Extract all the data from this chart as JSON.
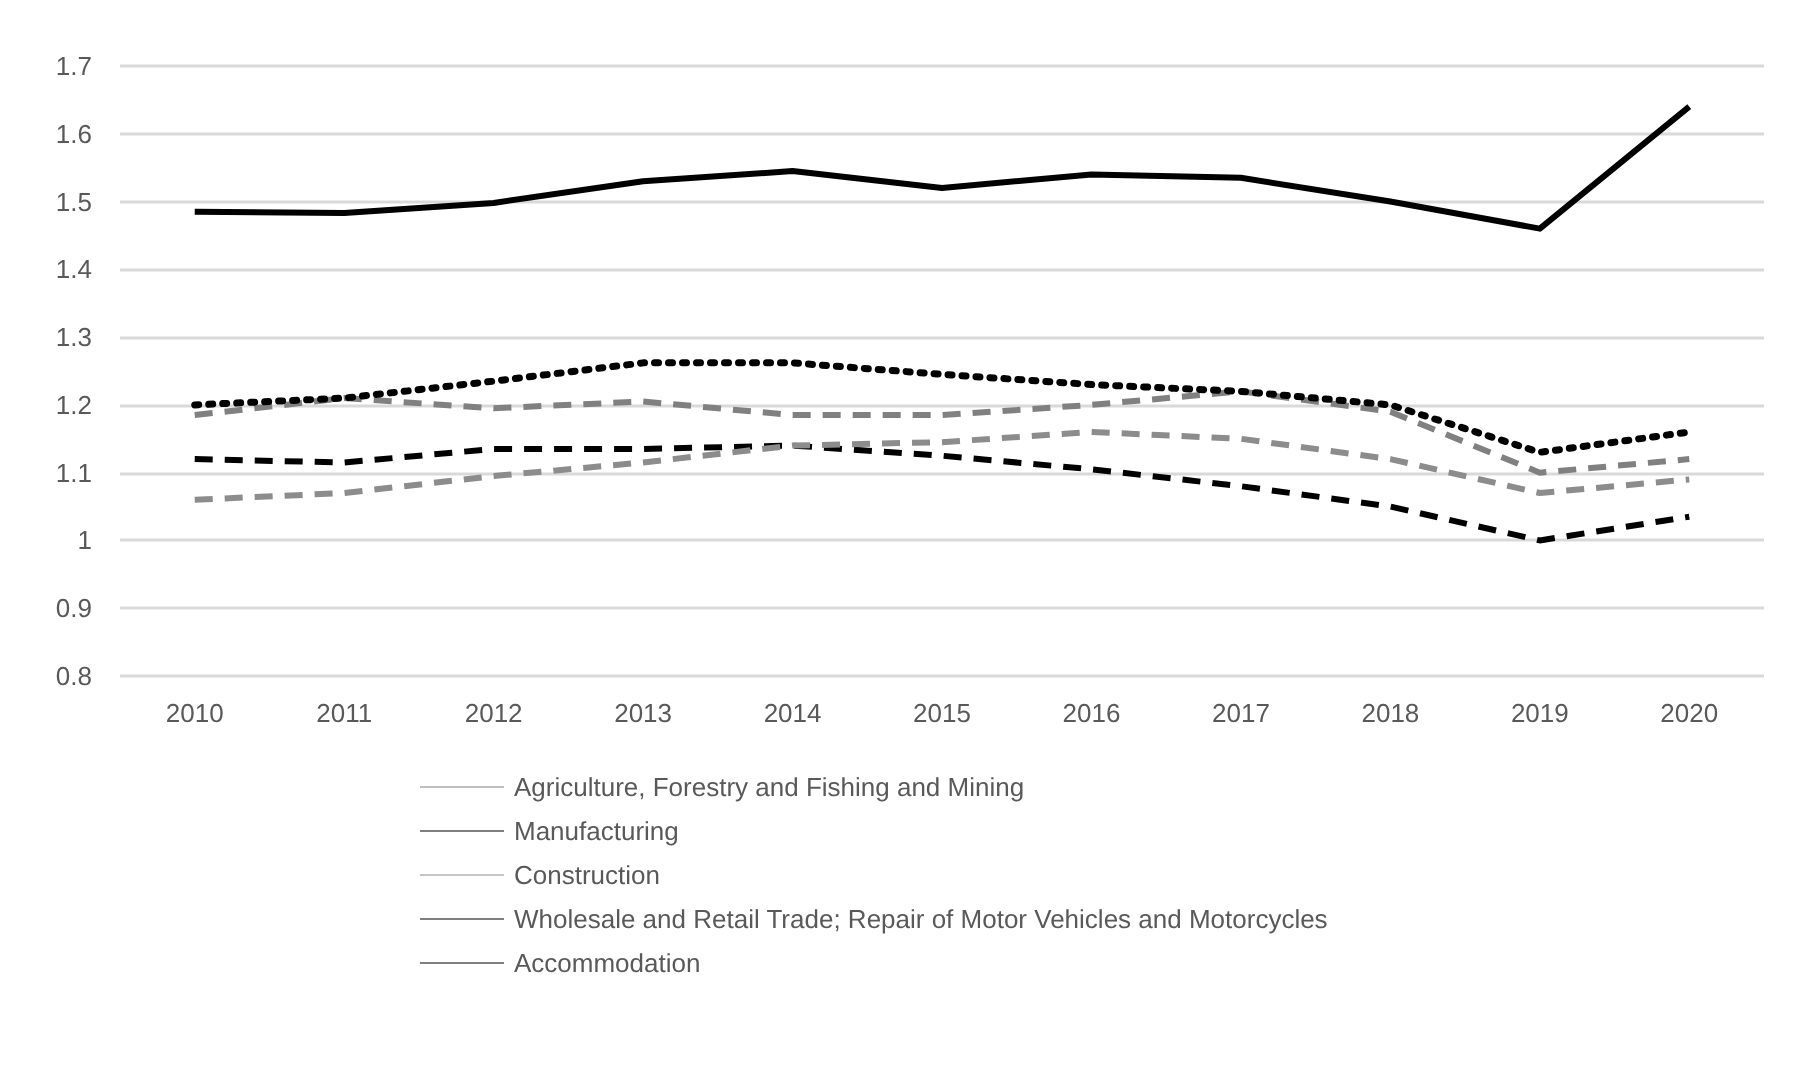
{
  "chart_data": {
    "type": "line",
    "categories": [
      "2010",
      "2011",
      "2012",
      "2013",
      "2014",
      "2015",
      "2016",
      "2017",
      "2018",
      "2019",
      "2020"
    ],
    "series": [
      {
        "name": "Agriculture, Forestry and Fishing and Mining",
        "color": "#808080",
        "line_style": "dashed",
        "values": [
          1.185,
          1.21,
          1.195,
          1.205,
          1.185,
          1.185,
          1.2,
          1.22,
          1.19,
          1.1,
          1.12
        ]
      },
      {
        "name": "Manufacturing",
        "color": "#000000",
        "line_style": "dashed",
        "values": [
          1.12,
          1.115,
          1.135,
          1.135,
          1.14,
          1.125,
          1.105,
          1.08,
          1.05,
          1.0,
          1.035
        ]
      },
      {
        "name": "Construction",
        "color": "#8c8c8c",
        "line_style": "dashed",
        "values": [
          1.06,
          1.07,
          1.095,
          1.115,
          1.14,
          1.145,
          1.16,
          1.15,
          1.12,
          1.07,
          1.09
        ]
      },
      {
        "name": "Wholesale and Retail Trade; Repair of Motor Vehicles and Motorcycles",
        "color": "#000000",
        "line_style": "dotted",
        "values": [
          1.2,
          1.21,
          1.235,
          1.262,
          1.262,
          1.245,
          1.23,
          1.22,
          1.2,
          1.13,
          1.16
        ]
      },
      {
        "name": "Accommodation",
        "color": "#000000",
        "line_style": "solid",
        "values": [
          1.485,
          1.483,
          1.498,
          1.53,
          1.545,
          1.52,
          1.54,
          1.535,
          1.5,
          1.46,
          1.64
        ]
      }
    ],
    "ylim": [
      0.8,
      1.7
    ],
    "yticks": [
      0.8,
      0.9,
      1,
      1.1,
      1.2,
      1.3,
      1.4,
      1.5,
      1.6,
      1.7
    ],
    "grid": "y",
    "legend": "bottom",
    "marker": "none"
  }
}
